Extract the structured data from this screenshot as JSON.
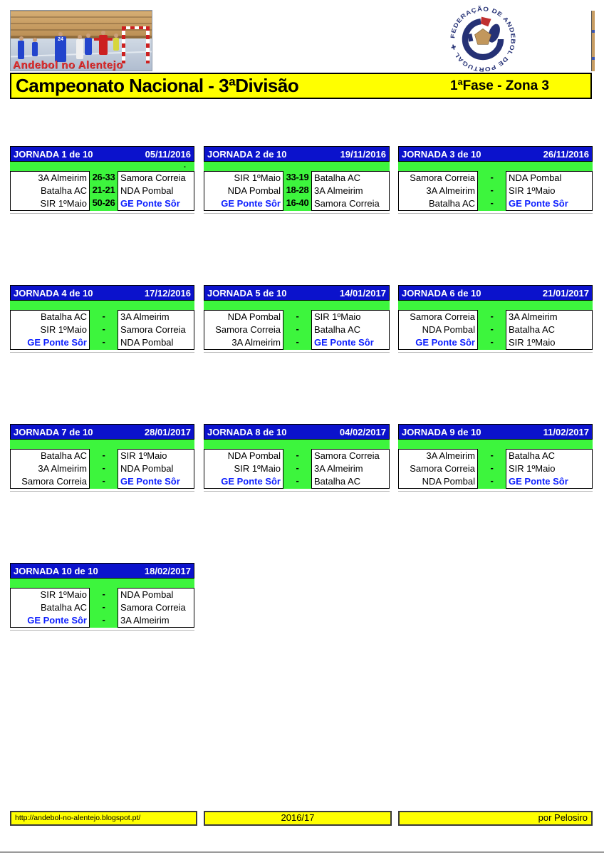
{
  "header": {
    "photo_caption": "Andebol no Alentejo",
    "photo_jersey_number": "24",
    "logo_text": "FEDERAÇÃO DE ANDEBOL DE PORTUGAL ✚",
    "banner_title": "Campeonato Nacional - 3ªDivisão",
    "banner_subtitle": "1ªFase - Zona 3"
  },
  "highlight_team": "GE Ponte Sôr",
  "colors": {
    "header_blue": "#0b12cc",
    "band_green": "#3df53d",
    "banner_yellow": "#ffff00",
    "highlight_blue": "#0d1fff",
    "caption_red": "#e03030",
    "logo_navy": "#253175"
  },
  "jornadas": [
    {
      "label": "JORNADA 1 de 10",
      "date": "05/11/2016",
      "note": ".",
      "matches": [
        {
          "home": "3A Almeirim",
          "score": "26-33",
          "away": "Samora Correia"
        },
        {
          "home": "Batalha AC",
          "score": "21-21",
          "away": "NDA Pombal"
        },
        {
          "home": "SIR 1ºMaio",
          "score": "50-26",
          "away": "GE Ponte Sôr"
        }
      ]
    },
    {
      "label": "JORNADA 2 de 10",
      "date": "19/11/2016",
      "note": "",
      "matches": [
        {
          "home": "SIR 1ºMaio",
          "score": "33-19",
          "away": "Batalha AC"
        },
        {
          "home": "NDA Pombal",
          "score": "18-28",
          "away": "3A Almeirim"
        },
        {
          "home": "GE Ponte Sôr",
          "score": "16-40",
          "away": "Samora Correia"
        }
      ]
    },
    {
      "label": "JORNADA 3 de 10",
      "date": "26/11/2016",
      "note": "",
      "matches": [
        {
          "home": "Samora Correia",
          "score": "-",
          "away": "NDA Pombal"
        },
        {
          "home": "3A Almeirim",
          "score": "-",
          "away": "SIR 1ºMaio"
        },
        {
          "home": "Batalha AC",
          "score": "-",
          "away": "GE Ponte Sôr"
        }
      ]
    },
    {
      "label": "JORNADA 4 de 10",
      "date": "17/12/2016",
      "note": "",
      "matches": [
        {
          "home": "Batalha AC",
          "score": "-",
          "away": "3A Almeirim"
        },
        {
          "home": "SIR 1ºMaio",
          "score": "-",
          "away": "Samora Correia"
        },
        {
          "home": "GE Ponte Sôr",
          "score": "-",
          "away": "NDA Pombal"
        }
      ]
    },
    {
      "label": "JORNADA 5 de 10",
      "date": "14/01/2017",
      "note": "",
      "matches": [
        {
          "home": "NDA Pombal",
          "score": "-",
          "away": "SIR 1ºMaio"
        },
        {
          "home": "Samora Correia",
          "score": "-",
          "away": "Batalha AC"
        },
        {
          "home": "3A Almeirim",
          "score": "-",
          "away": "GE Ponte Sôr"
        }
      ]
    },
    {
      "label": "JORNADA 6 de 10",
      "date": "21/01/2017",
      "note": "",
      "matches": [
        {
          "home": "Samora Correia",
          "score": "-",
          "away": "3A Almeirim"
        },
        {
          "home": "NDA Pombal",
          "score": "-",
          "away": "Batalha AC"
        },
        {
          "home": "GE Ponte Sôr",
          "score": "-",
          "away": "SIR 1ºMaio"
        }
      ]
    },
    {
      "label": "JORNADA 7 de 10",
      "date": "28/01/2017",
      "note": "",
      "matches": [
        {
          "home": "Batalha AC",
          "score": "-",
          "away": "SIR 1ºMaio"
        },
        {
          "home": "3A Almeirim",
          "score": "-",
          "away": "NDA Pombal"
        },
        {
          "home": "Samora Correia",
          "score": "-",
          "away": "GE Ponte Sôr"
        }
      ]
    },
    {
      "label": "JORNADA 8 de 10",
      "date": "04/02/2017",
      "note": "",
      "matches": [
        {
          "home": "NDA Pombal",
          "score": "-",
          "away": "Samora Correia"
        },
        {
          "home": "SIR 1ºMaio",
          "score": "-",
          "away": "3A Almeirim"
        },
        {
          "home": "GE Ponte Sôr",
          "score": "-",
          "away": "Batalha AC"
        }
      ]
    },
    {
      "label": "JORNADA 9 de 10",
      "date": "11/02/2017",
      "note": "",
      "matches": [
        {
          "home": "3A Almeirim",
          "score": "-",
          "away": "Batalha AC"
        },
        {
          "home": "Samora Correia",
          "score": "-",
          "away": "SIR 1ºMaio"
        },
        {
          "home": "NDA Pombal",
          "score": "-",
          "away": "GE Ponte Sôr"
        }
      ]
    },
    {
      "label": "JORNADA 10 de 10",
      "date": "18/02/2017",
      "note": "",
      "matches": [
        {
          "home": "SIR 1ºMaio",
          "score": "-",
          "away": "NDA Pombal"
        },
        {
          "home": "Batalha AC",
          "score": "-",
          "away": "Samora Correia"
        },
        {
          "home": "GE Ponte Sôr",
          "score": "-",
          "away": "3A Almeirim"
        }
      ]
    }
  ],
  "footer": {
    "url": "http://andebol-no-alentejo.blogspot.pt/",
    "season": "2016/17",
    "credit": "por Pelosiro"
  }
}
